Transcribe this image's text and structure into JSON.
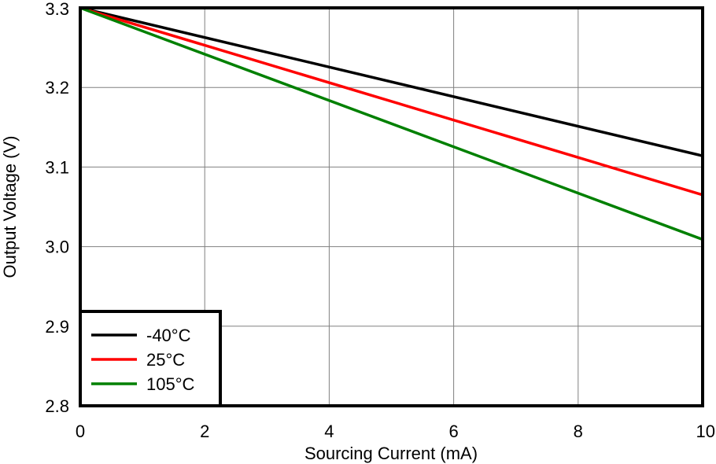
{
  "chart_data": {
    "type": "line",
    "title": "",
    "xlabel": "Sourcing Current (mA)",
    "ylabel": "Output Voltage (V)",
    "xlim": [
      0,
      10
    ],
    "ylim": [
      2.8,
      3.3
    ],
    "x_ticks": [
      "0",
      "2",
      "4",
      "6",
      "8",
      "10"
    ],
    "y_ticks": [
      "2.8",
      "2.9",
      "3.0",
      "3.1",
      "3.2",
      "3.3"
    ],
    "grid": true,
    "legend_position": "bottom-left",
    "series": [
      {
        "name": "-40°C",
        "color": "#000000",
        "x": [
          0,
          10
        ],
        "values": [
          3.3,
          3.114
        ]
      },
      {
        "name": "25°C",
        "color": "#ff0000",
        "x": [
          0,
          10
        ],
        "values": [
          3.3,
          3.065
        ]
      },
      {
        "name": "105°C",
        "color": "#008000",
        "x": [
          0,
          10
        ],
        "values": [
          3.3,
          3.009
        ]
      }
    ]
  }
}
